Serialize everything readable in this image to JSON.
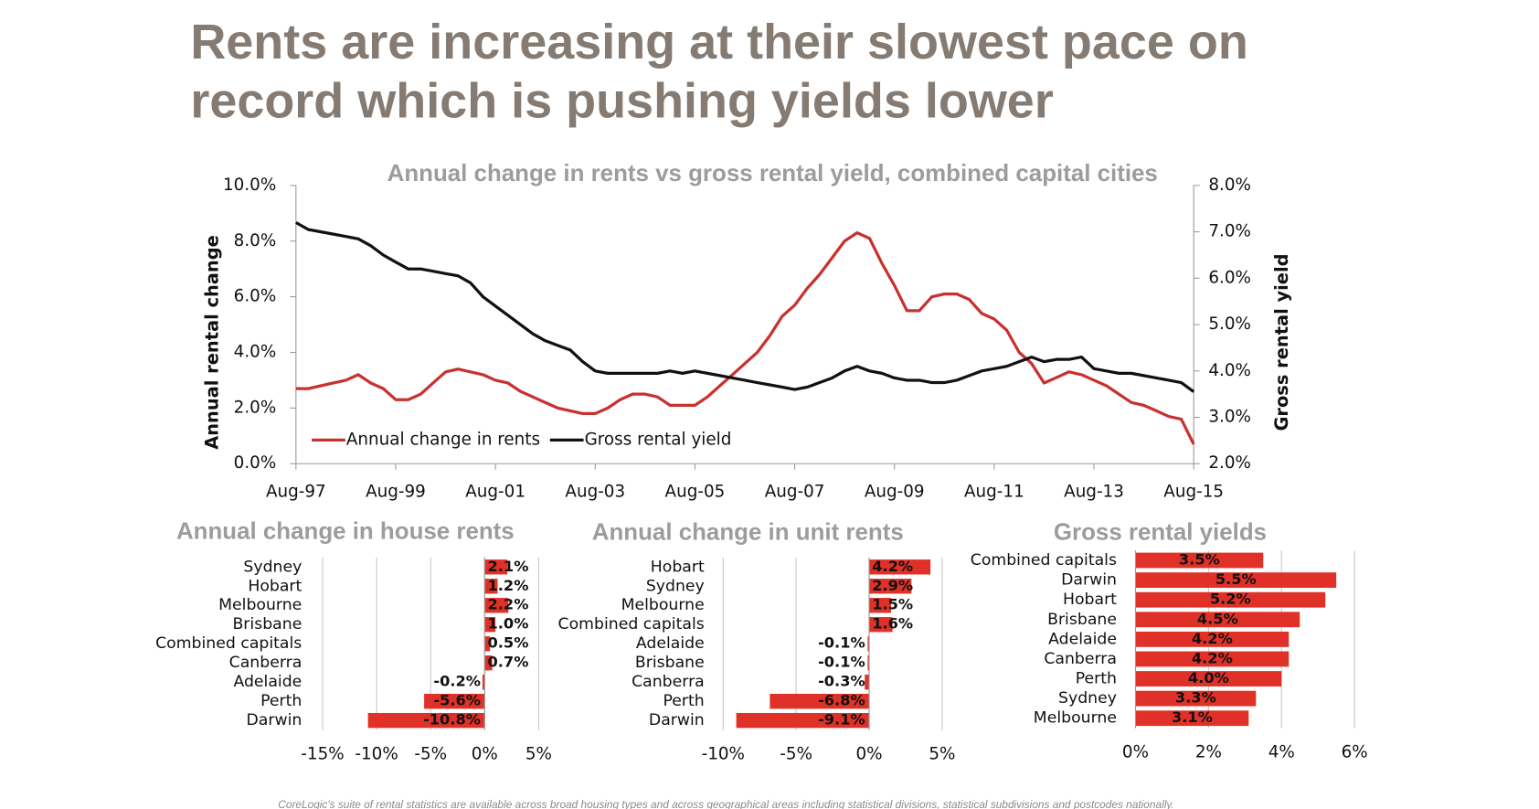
{
  "title": [
    "Rents are increasing at their slowest pace on",
    "record which is pushing yields lower"
  ],
  "footnote": "CoreLogic's suite of rental statistics are available across broad housing types and across geographical areas including statistical divisions, statistical subdivisions and postcodes nationally.",
  "chart_data": [
    {
      "type": "line",
      "title": "Annual change in rents vs gross rental yield, combined capital cities",
      "y_label": "Annual rental change",
      "y2_label": "Gross rental yield",
      "x": [
        "Aug-97",
        "Nov-97",
        "Feb-98",
        "May-98",
        "Aug-98",
        "Nov-98",
        "Feb-99",
        "May-99",
        "Aug-99",
        "Nov-99",
        "Feb-00",
        "May-00",
        "Aug-00",
        "Nov-00",
        "Feb-01",
        "May-01",
        "Aug-01",
        "Nov-01",
        "Feb-02",
        "May-02",
        "Aug-02",
        "Nov-02",
        "Feb-03",
        "May-03",
        "Aug-03",
        "Nov-03",
        "Feb-04",
        "May-04",
        "Aug-04",
        "Nov-04",
        "Feb-05",
        "May-05",
        "Aug-05",
        "Nov-05",
        "Feb-06",
        "May-06",
        "Aug-06",
        "Nov-06",
        "Feb-07",
        "May-07",
        "Aug-07",
        "Nov-07",
        "Feb-08",
        "May-08",
        "Aug-08",
        "Nov-08",
        "Feb-09",
        "May-09",
        "Aug-09",
        "Nov-09",
        "Feb-10",
        "May-10",
        "Aug-10",
        "Nov-10",
        "Feb-11",
        "May-11",
        "Aug-11",
        "Nov-11",
        "Feb-12",
        "May-12",
        "Aug-12",
        "Nov-12",
        "Feb-13",
        "May-13",
        "Aug-13",
        "Nov-13",
        "Feb-14",
        "May-14",
        "Aug-14",
        "Nov-14",
        "Feb-15",
        "May-15",
        "Aug-15"
      ],
      "xticks": [
        "Aug-97",
        "Aug-99",
        "Aug-01",
        "Aug-03",
        "Aug-05",
        "Aug-07",
        "Aug-09",
        "Aug-11",
        "Aug-13",
        "Aug-15"
      ],
      "series": [
        {
          "name": "Annual change in rents",
          "color": "#c8312f",
          "values": [
            2.7,
            2.7,
            2.8,
            2.9,
            3.0,
            3.2,
            2.9,
            2.7,
            2.3,
            2.3,
            2.5,
            2.9,
            3.3,
            3.4,
            3.3,
            3.2,
            3.0,
            2.9,
            2.6,
            2.4,
            2.2,
            2.0,
            1.9,
            1.8,
            1.8,
            2.0,
            2.3,
            2.5,
            2.5,
            2.4,
            2.1,
            2.1,
            2.1,
            2.4,
            2.8,
            3.2,
            3.6,
            4.0,
            4.6,
            5.3,
            5.7,
            6.3,
            6.8,
            7.4,
            8.0,
            8.3,
            8.1,
            7.2,
            6.4,
            5.5,
            5.5,
            6.0,
            6.1,
            6.1,
            5.9,
            5.4,
            5.2,
            4.8,
            4.0,
            3.6,
            2.9,
            3.1,
            3.3,
            3.2,
            3.0,
            2.8,
            2.5,
            2.2,
            2.1,
            1.9,
            1.7,
            1.6,
            0.7
          ]
        },
        {
          "name": "Gross rental yield",
          "color": "#111111",
          "axis": "y2",
          "values": [
            7.2,
            7.05,
            7.0,
            6.95,
            6.9,
            6.85,
            6.7,
            6.5,
            6.35,
            6.2,
            6.2,
            6.15,
            6.1,
            6.05,
            5.9,
            5.6,
            5.4,
            5.2,
            5.0,
            4.8,
            4.65,
            4.55,
            4.45,
            4.2,
            4.0,
            3.95,
            3.95,
            3.95,
            3.95,
            3.95,
            4.0,
            3.95,
            4.0,
            3.95,
            3.9,
            3.85,
            3.8,
            3.75,
            3.7,
            3.65,
            3.6,
            3.65,
            3.75,
            3.85,
            4.0,
            4.1,
            4.0,
            3.95,
            3.85,
            3.8,
            3.8,
            3.75,
            3.75,
            3.8,
            3.9,
            4.0,
            4.05,
            4.1,
            4.2,
            4.3,
            4.2,
            4.25,
            4.25,
            4.3,
            4.05,
            4.0,
            3.95,
            3.95,
            3.9,
            3.85,
            3.8,
            3.75,
            3.55
          ]
        }
      ],
      "ylim": [
        0,
        10
      ],
      "yticks": [
        {
          "value": 0,
          "label": "0.0%"
        },
        {
          "value": 2,
          "label": "2.0%"
        },
        {
          "value": 4,
          "label": "4.0%"
        },
        {
          "value": 6,
          "label": "6.0%"
        },
        {
          "value": 8,
          "label": "8.0%"
        },
        {
          "value": 10,
          "label": "10.0%"
        }
      ],
      "y2lim": [
        2,
        8
      ],
      "y2ticks": [
        {
          "value": 2,
          "label": "2.0%"
        },
        {
          "value": 3,
          "label": "3.0%"
        },
        {
          "value": 4,
          "label": "4.0%"
        },
        {
          "value": 5,
          "label": "5.0%"
        },
        {
          "value": 6,
          "label": "6.0%"
        },
        {
          "value": 7,
          "label": "7.0%"
        },
        {
          "value": 8,
          "label": "8.0%"
        }
      ],
      "legend": "lower left"
    },
    {
      "type": "bar",
      "horizontal": true,
      "title": "Annual change in house rents",
      "color": "#e03128",
      "categories": [
        "Sydney",
        "Hobart",
        "Melbourne",
        "Brisbane",
        "Combined capitals",
        "Canberra",
        "Adelaide",
        "Perth",
        "Darwin"
      ],
      "values": [
        2.1,
        1.2,
        2.2,
        1.0,
        0.5,
        0.7,
        -0.2,
        -5.6,
        -10.8
      ],
      "value_labels": [
        "2.1%",
        "1.2%",
        "2.2%",
        "1.0%",
        "0.5%",
        "0.7%",
        "-0.2%",
        "-5.6%",
        "-10.8%"
      ],
      "xlim": [
        -15,
        5
      ],
      "xticks": [
        {
          "value": -15,
          "label": "-15%"
        },
        {
          "value": -10,
          "label": "-10%"
        },
        {
          "value": -5,
          "label": "-5%"
        },
        {
          "value": 0,
          "label": "0%"
        },
        {
          "value": 5,
          "label": "5%"
        }
      ],
      "grid": true
    },
    {
      "type": "bar",
      "horizontal": true,
      "title": "Annual change in unit rents",
      "color": "#e03128",
      "categories": [
        "Hobart",
        "Sydney",
        "Melbourne",
        "Combined capitals",
        "Adelaide",
        "Brisbane",
        "Canberra",
        "Perth",
        "Darwin"
      ],
      "values": [
        4.2,
        2.9,
        1.5,
        1.6,
        -0.1,
        -0.1,
        -0.3,
        -6.8,
        -9.1
      ],
      "value_labels": [
        "4.2%",
        "2.9%",
        "1.5%",
        "1.6%",
        "-0.1%",
        "-0.1%",
        "-0.3%",
        "-6.8%",
        "-9.1%"
      ],
      "xlim": [
        -10,
        5
      ],
      "xticks": [
        {
          "value": -10,
          "label": "-10%"
        },
        {
          "value": -5,
          "label": "-5%"
        },
        {
          "value": 0,
          "label": "0%"
        },
        {
          "value": 5,
          "label": "5%"
        }
      ],
      "grid": true
    },
    {
      "type": "bar",
      "horizontal": true,
      "title": "Gross rental yields",
      "color": "#e03128",
      "categories": [
        "Combined capitals",
        "Darwin",
        "Hobart",
        "Brisbane",
        "Adelaide",
        "Canberra",
        "Perth",
        "Sydney",
        "Melbourne"
      ],
      "values": [
        3.5,
        5.5,
        5.2,
        4.5,
        4.2,
        4.2,
        4.0,
        3.3,
        3.1
      ],
      "value_labels": [
        "3.5%",
        "5.5%",
        "5.2%",
        "4.5%",
        "4.2%",
        "4.2%",
        "4.0%",
        "3.3%",
        "3.1%"
      ],
      "xlim": [
        0,
        6
      ],
      "xticks": [
        {
          "value": 0,
          "label": "0%"
        },
        {
          "value": 2,
          "label": "2%"
        },
        {
          "value": 4,
          "label": "4%"
        },
        {
          "value": 6,
          "label": "6%"
        }
      ],
      "grid": true
    }
  ]
}
